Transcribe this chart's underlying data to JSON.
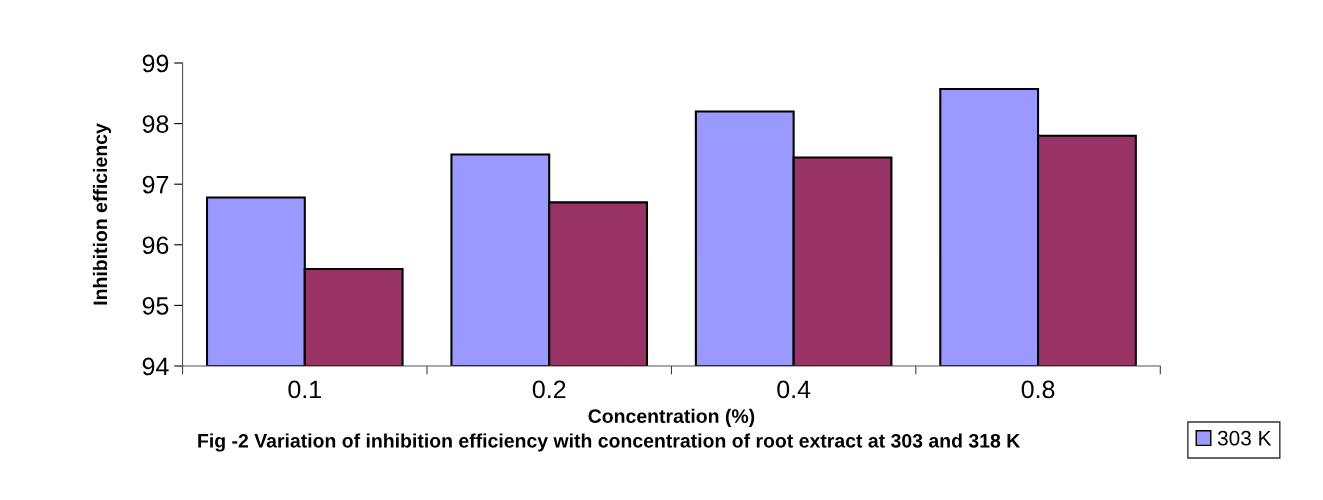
{
  "chart_data": {
    "type": "bar",
    "xlabel": "Concentration (%)",
    "ylabel": "Inhibition efficiency",
    "categories": [
      "0.1",
      "0.2",
      "0.4",
      "0.8"
    ],
    "series": [
      {
        "name": "303 K",
        "color": "#9999ff",
        "values": [
          96.78,
          97.49,
          98.2,
          98.57
        ]
      },
      {
        "color": "#993366",
        "values": [
          95.6,
          96.7,
          97.44,
          97.8
        ]
      }
    ],
    "ylim": [
      94,
      99
    ],
    "yticks": [
      94,
      95,
      96,
      97,
      98,
      99
    ],
    "grid": false,
    "legend": "bottom right",
    "annotations": [
      "Fig -2 Variation of inhibition efficiency with concentration of root extract at 303 and 318 K"
    ]
  }
}
